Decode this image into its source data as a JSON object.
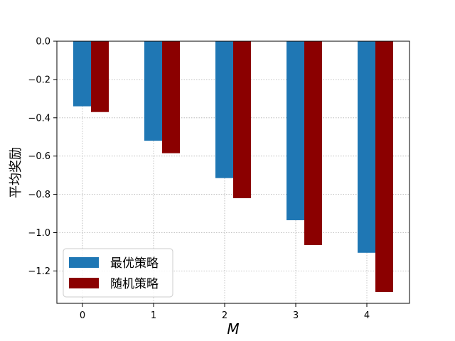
{
  "chart_data": {
    "type": "bar",
    "categories": [
      "0",
      "1",
      "2",
      "3",
      "4"
    ],
    "series": [
      {
        "name": "最优策略",
        "values": [
          -0.34,
          -0.52,
          -0.715,
          -0.935,
          -1.105
        ],
        "color": "#1f77b4"
      },
      {
        "name": "随机策略",
        "values": [
          -0.37,
          -0.585,
          -0.82,
          -1.065,
          -1.31
        ],
        "color": "#8b0000"
      }
    ],
    "xlabel": "M",
    "ylabel": "平均奖励",
    "ylim": [
      -1.31,
      0.0
    ],
    "yticks": [
      0.0,
      -0.2,
      -0.4,
      -0.6,
      -0.8,
      -1.0,
      -1.2
    ],
    "ytick_labels": [
      "0.0",
      "−0.2",
      "−0.4",
      "−0.6",
      "−0.8",
      "−1.0",
      "−1.2"
    ],
    "grid": true,
    "legend_position": "lower-left"
  }
}
